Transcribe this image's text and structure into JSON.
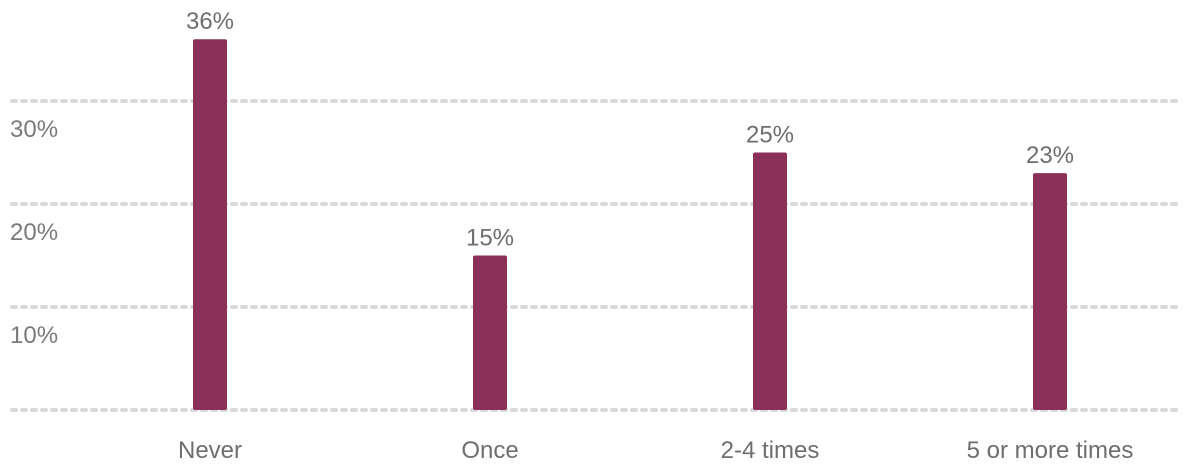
{
  "chart_data": {
    "type": "bar",
    "categories": [
      "Never",
      "Once",
      "2-4 times",
      "5 or more times"
    ],
    "values": [
      36,
      15,
      25,
      23
    ],
    "value_labels": [
      "36%",
      "15%",
      "25%",
      "23%"
    ],
    "title": "",
    "xlabel": "",
    "ylabel": "",
    "ylim": [
      0,
      40
    ],
    "yticks": [
      0,
      10,
      20,
      30
    ],
    "ytick_labels": [
      "",
      "10%",
      "20%",
      "30%"
    ],
    "grid": true,
    "bar_color": "#8b3058"
  }
}
